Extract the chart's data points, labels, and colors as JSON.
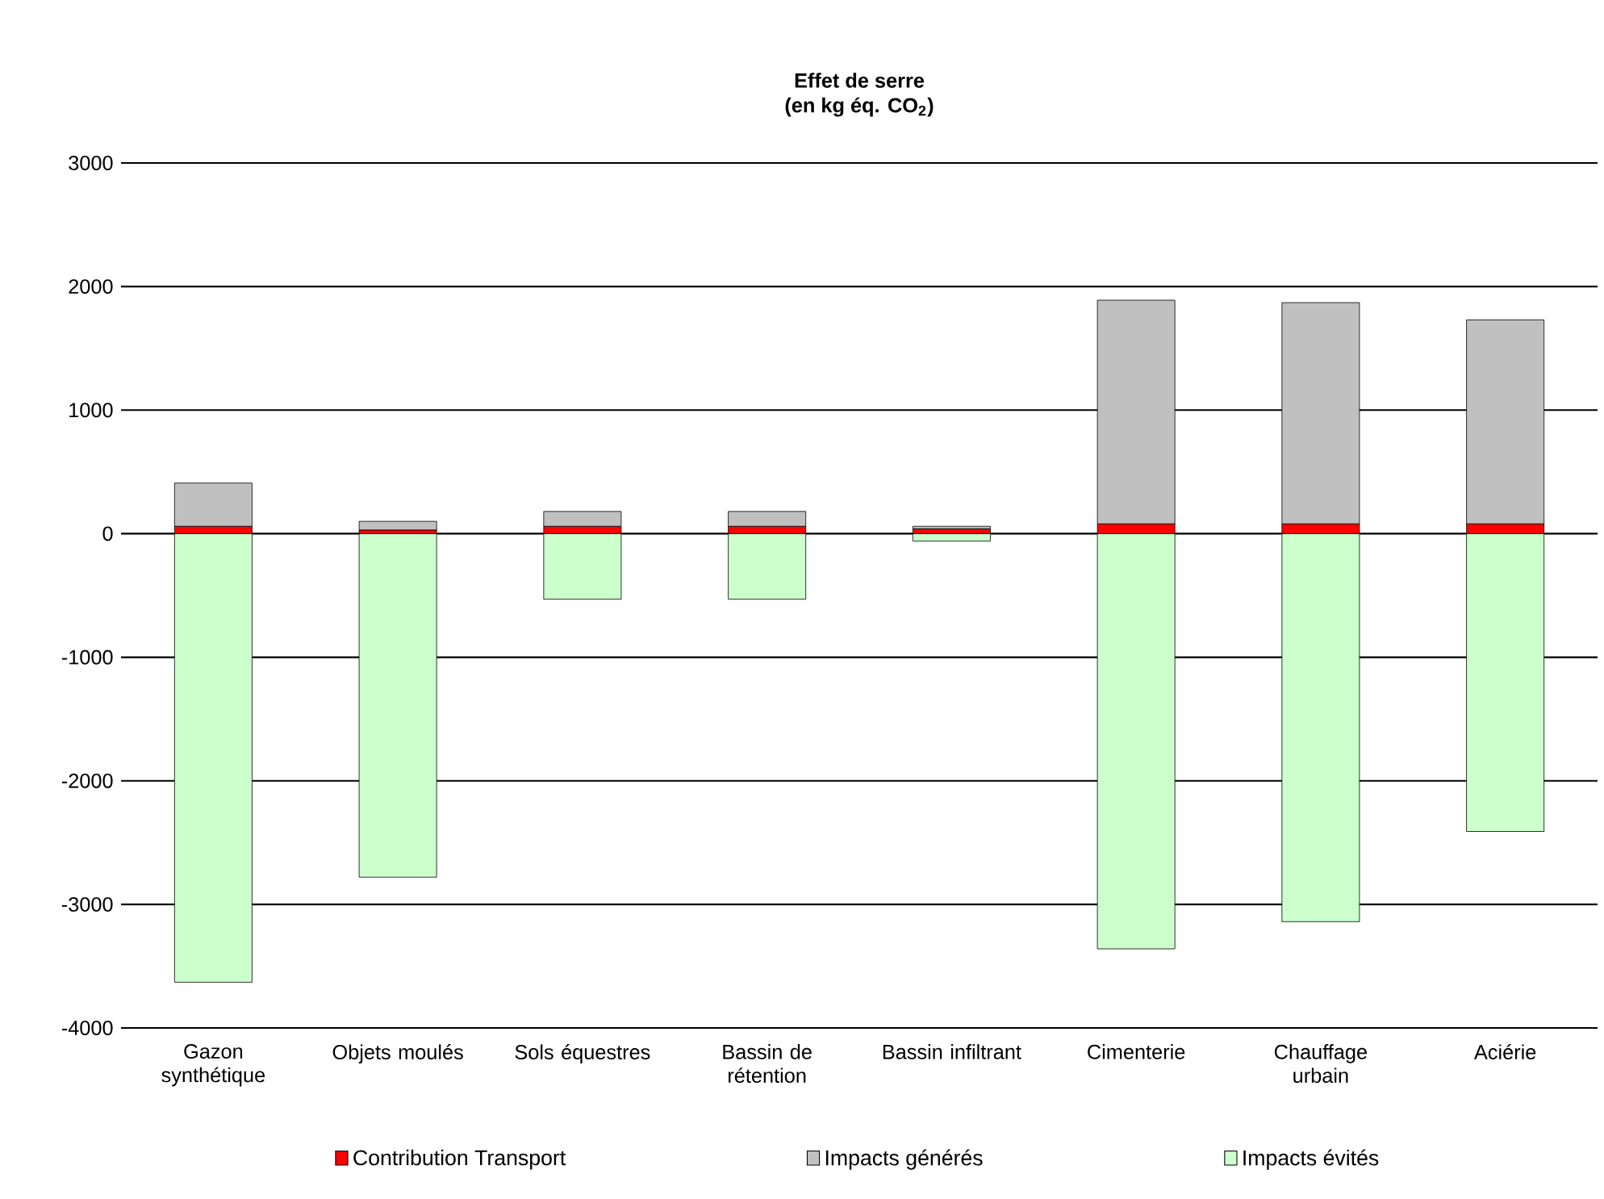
{
  "chart_data": {
    "type": "bar",
    "title": "Effet de serre",
    "subtitle": "(en kg éq. CO$_{2}$)",
    "categories": [
      "Gazon synthétique",
      "Objets moulés",
      "Sols équestres",
      "Bassin de rétention",
      "Bassin infiltrant",
      "Cimenterie",
      "Chauffage urbain",
      "Aciérie"
    ],
    "stacked": true,
    "series": [
      {
        "name": "Contribution Transport",
        "color": "#ff0000",
        "values": [
          60,
          30,
          60,
          60,
          40,
          80,
          80,
          80
        ]
      },
      {
        "name": "Impacts générés",
        "color": "#c0c0c0",
        "values": [
          350,
          70,
          120,
          120,
          20,
          1810,
          1790,
          1650
        ]
      },
      {
        "name": "Impacts évités",
        "color": "#ccffcc",
        "values": [
          -3630,
          -2780,
          -530,
          -530,
          -60,
          -3360,
          -3140,
          -2410
        ]
      }
    ],
    "ylim": [
      -4000,
      3000
    ],
    "yticks": [
      -4000,
      -3000,
      -2000,
      -1000,
      0,
      1000,
      2000,
      3000
    ],
    "grid": "y",
    "legend": "bottom"
  }
}
